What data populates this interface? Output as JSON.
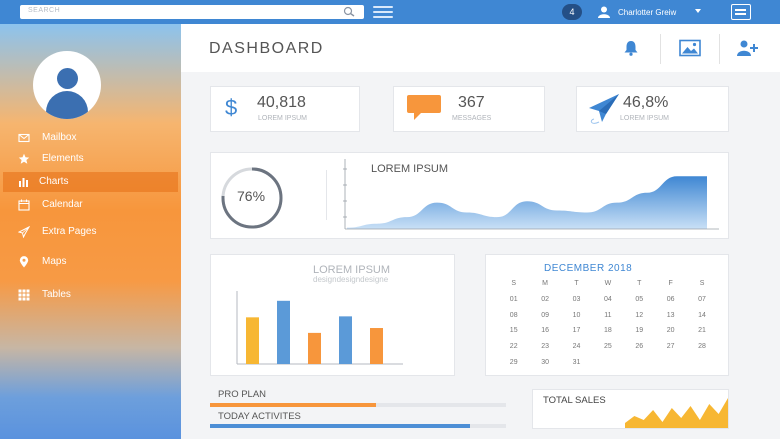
{
  "topbar": {
    "search_placeholder": "SEARCH",
    "notification_count": "4",
    "user_name": "Charlotter Greiw"
  },
  "sidebar": {
    "items": [
      {
        "label": "Mailbox",
        "icon": "mail-icon"
      },
      {
        "label": "Elements",
        "icon": "star-icon"
      },
      {
        "label": "Charts",
        "icon": "bar-chart-icon"
      },
      {
        "label": "Calendar",
        "icon": "calendar-icon"
      },
      {
        "label": "Extra Pages",
        "icon": "paper-plane-icon"
      },
      {
        "label": "Maps",
        "icon": "map-pin-icon"
      },
      {
        "label": "Tables",
        "icon": "grid-icon"
      }
    ],
    "active": "Charts"
  },
  "header": {
    "title": "DASHBOARD"
  },
  "stats": [
    {
      "value": "40,818",
      "label": "LOREM IPSUM",
      "icon": "dollar-icon"
    },
    {
      "value": "367",
      "label": "MESSAGES",
      "icon": "chat-icon"
    },
    {
      "value": "46,8%",
      "label": "LOREM IPSUM",
      "icon": "paper-plane-icon"
    }
  ],
  "area_card": {
    "title": "LOREM IPSUM",
    "percent": "76%",
    "percent_value": 0.76
  },
  "bar_card": {
    "title": "LOREM IPSUM",
    "subtitle": "designdesigndesigne"
  },
  "calendar": {
    "title": "DECEMBER 2018",
    "weekdays": [
      "S",
      "M",
      "T",
      "W",
      "T",
      "F",
      "S"
    ],
    "weeks": [
      [
        "01",
        "02",
        "03",
        "04",
        "05",
        "06",
        "07"
      ],
      [
        "08",
        "09",
        "10",
        "11",
        "12",
        "13",
        "14"
      ],
      [
        "15",
        "16",
        "17",
        "18",
        "19",
        "20",
        "21"
      ],
      [
        "22",
        "23",
        "24",
        "25",
        "26",
        "27",
        "28"
      ],
      [
        "29",
        "30",
        "31",
        "",
        "",
        "",
        ""
      ]
    ]
  },
  "progress": [
    {
      "label": "PRO PLAN",
      "value": 0.56,
      "color": "#f7963c"
    },
    {
      "label": "TODAY ACTIVITES",
      "value": 0.88,
      "color": "#4d8fd6"
    }
  ],
  "sales": {
    "title": "TOTAL SALES"
  },
  "chart_data": [
    {
      "type": "area",
      "title": "LOREM IPSUM",
      "x": [
        0,
        1,
        2,
        3,
        4,
        5,
        6,
        7,
        8,
        9,
        10,
        11,
        12
      ],
      "values": [
        2,
        8,
        18,
        40,
        25,
        18,
        42,
        28,
        25,
        40,
        55,
        80,
        80
      ],
      "ylim": [
        0,
        100
      ],
      "color": "#5b9fe0"
    },
    {
      "type": "bar",
      "categories": [
        "1",
        "2",
        "3",
        "4",
        "5",
        "6"
      ],
      "values": [
        48,
        65,
        32,
        49,
        37,
        0
      ],
      "colors": [
        "#f7b733",
        "#5b9ad8",
        "#f7963c",
        "#5b9ad8",
        "#f7963c"
      ],
      "ylim": [
        0,
        72
      ]
    },
    {
      "type": "area",
      "title": "TOTAL SALES",
      "values": [
        5,
        12,
        8,
        18,
        6,
        20,
        10,
        22,
        8,
        24,
        14,
        30
      ],
      "ylim": [
        0,
        30
      ],
      "color": "#f7b733"
    }
  ]
}
